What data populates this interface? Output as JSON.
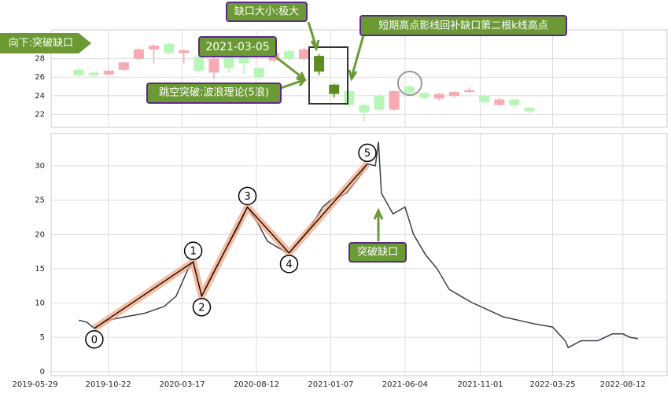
{
  "chart_data": [
    {
      "type": "candlestick",
      "open": [
        26.8,
        26.5,
        26.3,
        26.8,
        28.0,
        29.0,
        29.6,
        28.6,
        28.2,
        26.5,
        28.3,
        28.2,
        27.0,
        27.8,
        28.8,
        28.0,
        28.3,
        25.2,
        24.5,
        23.0,
        24.0,
        22.5,
        25.0,
        24.3,
        23.7,
        24.0,
        24.4,
        24.0,
        23.0,
        23.6,
        22.7
      ],
      "close": [
        26.2,
        26.2,
        26.7,
        27.6,
        29.0,
        29.4,
        28.6,
        28.9,
        26.7,
        28.0,
        27.0,
        27.5,
        26.0,
        28.6,
        28.0,
        29.0,
        26.6,
        24.2,
        23.0,
        22.2,
        22.5,
        24.5,
        24.3,
        23.8,
        24.2,
        24.4,
        24.6,
        23.3,
        23.6,
        23.0,
        22.3
      ],
      "high": [
        27.0,
        26.6,
        26.8,
        27.7,
        29.2,
        29.5,
        29.7,
        29.0,
        29.8,
        28.2,
        28.5,
        28.3,
        27.1,
        28.8,
        29.0,
        29.2,
        28.5,
        25.3,
        24.6,
        23.2,
        24.2,
        24.6,
        25.2,
        24.4,
        24.3,
        24.5,
        24.9,
        24.2,
        23.8,
        23.7,
        22.8
      ],
      "low": [
        26.0,
        26.0,
        26.2,
        26.7,
        27.8,
        27.5,
        28.5,
        27.5,
        26.5,
        25.8,
        26.5,
        26.3,
        25.8,
        27.6,
        27.8,
        27.8,
        26.2,
        23.8,
        22.8,
        21.2,
        22.3,
        22.4,
        24.2,
        23.6,
        23.5,
        23.8,
        24.3,
        23.0,
        22.9,
        22.6,
        22.1
      ],
      "colors": [
        "#b8f5b8",
        "#b8f5b8",
        "#f7aab4",
        "#f7aab4",
        "#f7aab4",
        "#f7aab4",
        "#b8f5b8",
        "#f7aab4",
        "#b8f5b8",
        "#f7aab4",
        "#b8f5b8",
        "#b8f5b8",
        "#b8f5b8",
        "#f7aab4",
        "#b8f5b8",
        "#f7aab4",
        "#5e8c22",
        "#5e8c22",
        "#b8f5b8",
        "#b8f5b8",
        "#b8f5b8",
        "#f7aab4",
        "#b8f5b8",
        "#b8f5b8",
        "#f7aab4",
        "#f7aab4",
        "#f7aab4",
        "#b8f5b8",
        "#f7aab4",
        "#b8f5b8",
        "#b8f5b8"
      ],
      "ylim": [
        20.6,
        31.1
      ],
      "yticks": [
        22,
        24,
        26,
        28
      ],
      "grid": true
    },
    {
      "type": "line",
      "x": [
        "2019-08-24",
        "2019-09-09",
        "2019-09-24",
        "2019-10-22",
        "2019-11-25",
        "2020-01-02",
        "2020-02-10",
        "2020-03-05",
        "2020-03-29",
        "2020-04-08",
        "2020-04-25",
        "2020-05-14",
        "2020-06-13",
        "2020-07-07",
        "2020-07-25",
        "2020-08-12",
        "2020-09-03",
        "2020-09-26",
        "2020-10-16",
        "2020-11-04",
        "2020-11-27",
        "2020-12-22",
        "2021-01-07",
        "2021-02-07",
        "2021-03-01",
        "2021-03-21",
        "2021-04-06",
        "2021-04-12",
        "2021-04-18",
        "2021-05-11",
        "2021-06-04",
        "2021-06-21",
        "2021-07-15",
        "2021-08-07",
        "2021-08-31",
        "2021-09-23",
        "2021-10-17",
        "2021-11-16",
        "2021-12-16",
        "2022-01-15",
        "2022-02-14",
        "2022-03-25",
        "2022-04-19",
        "2022-04-25",
        "2022-05-21",
        "2022-06-23",
        "2022-07-22",
        "2022-08-12",
        "2022-08-26",
        "2022-09-11"
      ],
      "series": [
        {
          "color": "#3a3f4a",
          "values": [
            7.5,
            7.2,
            6.3,
            7.5,
            8.0,
            8.5,
            9.5,
            11.0,
            15.0,
            16.0,
            11.0,
            14.0,
            18.0,
            21.0,
            24.0,
            22.0,
            19.0,
            18.0,
            17.3,
            19.0,
            21.0,
            24.0,
            25.0,
            26.0,
            28.0,
            30.3,
            30.0,
            33.5,
            26.0,
            23.0,
            24.0,
            20.0,
            17.0,
            15.0,
            12.0,
            11.0,
            10.0,
            9.0,
            8.0,
            7.5,
            7.0,
            6.5,
            4.5,
            3.5,
            4.5,
            4.5,
            5.5,
            5.5,
            5.0,
            4.8
          ]
        }
      ],
      "waves": {
        "labels": [
          "0",
          "1",
          "2",
          "3",
          "4",
          "5"
        ],
        "x": [
          "2019-09-24",
          "2020-04-08",
          "2020-04-25",
          "2020-07-25",
          "2020-10-16",
          "2021-03-21"
        ],
        "values": [
          6.3,
          16.0,
          11.0,
          24.0,
          17.3,
          30.3
        ],
        "color": "#f4a582"
      },
      "xlim": [
        "2019-06-30",
        "2022-11-08"
      ],
      "xticks": [
        "2019-05-29",
        "2019-10-22",
        "2020-03-17",
        "2020-08-12",
        "2021-01-07",
        "2021-06-04",
        "2021-11-01",
        "2022-03-25",
        "2022-08-12"
      ],
      "ylim": [
        -0.6,
        34.7
      ],
      "yticks": [
        0,
        5,
        10,
        15,
        20,
        25,
        30
      ],
      "grid": true
    }
  ],
  "annotations": [
    "向下:突破缺口",
    "缺口大小:极大",
    "2021-03-05",
    "跳空突破:波浪理论(5浪)",
    "短期高点影线回补缺口第二根k线高点",
    "突破缺口"
  ]
}
